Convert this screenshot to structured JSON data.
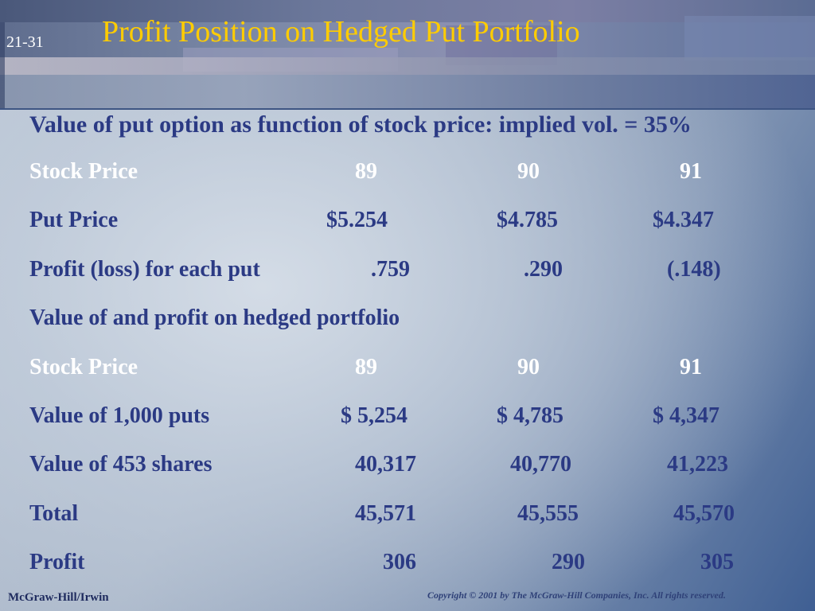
{
  "slide": {
    "number": "21-31",
    "title": "Profit Position on Hedged Put Portfolio",
    "subtitle": "Value of put option as function of stock price: implied vol. = 35%"
  },
  "table1": {
    "stock_price": {
      "label": "Stock Price",
      "values": [
        "89",
        "90",
        "91"
      ]
    },
    "put_price": {
      "label": "Put Price",
      "values": [
        "$5.254",
        "$4.785",
        "$4.347"
      ]
    },
    "profit_per_put": {
      "label": "Profit (loss) for each put",
      "values": [
        ".759",
        ".290",
        "(.148)"
      ]
    }
  },
  "section2": {
    "heading": "Value of and  profit on hedged portfolio"
  },
  "table2": {
    "stock_price": {
      "label": "Stock Price",
      "values": [
        "89",
        "90",
        "91"
      ]
    },
    "puts_value": {
      "label": "Value of 1,000 puts",
      "values": [
        "$ 5,254",
        "$ 4,785",
        "$ 4,347"
      ]
    },
    "shares_value": {
      "label": "Value of 453 shares",
      "values": [
        "40,317",
        "40,770",
        "41,223"
      ]
    },
    "total": {
      "label": "Total",
      "values": [
        "45,571",
        "45,555",
        "45,570"
      ]
    },
    "profit": {
      "label": "Profit",
      "values": [
        "306",
        "290",
        "305"
      ]
    }
  },
  "footer": {
    "publisher": "McGraw-Hill/Irwin",
    "copyright": "Copyright © 2001 by The McGraw-Hill Companies, Inc.  All rights reserved."
  },
  "colors": {
    "title": "#ffcc00",
    "text_blue": "#2b3a84",
    "text_white": "#ffffff"
  }
}
